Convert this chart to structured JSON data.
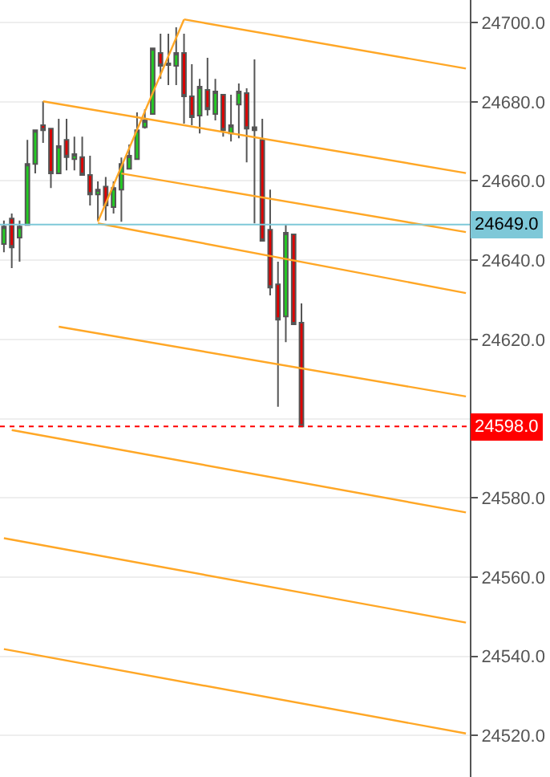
{
  "chart_data": {
    "type": "candlestick",
    "categories": [
      null,
      null,
      null,
      null,
      null,
      null,
      null,
      null,
      null,
      null,
      null,
      null,
      null,
      null,
      null,
      null,
      null,
      null,
      null,
      null,
      null,
      null,
      null,
      null,
      null,
      null,
      null,
      null,
      null,
      null,
      null,
      null,
      null,
      null,
      null,
      null,
      null,
      null,
      null,
      null,
      null,
      null,
      null,
      null,
      null,
      null,
      null,
      null,
      null,
      null,
      null,
      null,
      null,
      null,
      null,
      null,
      null,
      null,
      null,
      null
    ],
    "ohlc": [
      [
        24644.1,
        24650,
        24642,
        24648.5
      ],
      [
        24650.5,
        24651.8,
        24638,
        24643.2
      ],
      [
        24645.7,
        24650,
        24639.6,
        24648.5
      ],
      [
        24648.9,
        24670.4,
        24648.9,
        24664.3
      ],
      [
        24664.3,
        24672.8,
        24661.9,
        24672.8
      ],
      [
        24674.1,
        24680.1,
        24669.6,
        24672.8
      ],
      [
        24673.2,
        24673.2,
        24658.2,
        24661.9
      ],
      [
        24661.9,
        24675.7,
        24661.9,
        24668.8
      ],
      [
        24670.4,
        24675.7,
        24662.7,
        24666
      ],
      [
        24665.5,
        24671.2,
        24662.7,
        24666.8
      ],
      [
        24666,
        24671.2,
        24661.5,
        24661.5
      ],
      [
        24661.5,
        24666.4,
        24653.8,
        24656.6
      ],
      [
        24656.6,
        24659.9,
        24650,
        24657.8
      ],
      [
        24658.6,
        24661,
        24650,
        24653.8
      ],
      [
        24653.4,
        24659.9,
        24651.8,
        24658.2
      ],
      [
        24657.8,
        24665.9,
        24649.7,
        24664.3
      ],
      [
        24663.1,
        24669.2,
        24663.1,
        24666.4
      ],
      [
        24665.5,
        24677.3,
        24665.5,
        24672.8
      ],
      [
        24673.6,
        24678.1,
        24673.2,
        24675.3
      ],
      [
        24676.9,
        24693.5,
        24676.9,
        24693.5
      ],
      [
        24692.3,
        24697.2,
        24685.8,
        24689.1
      ],
      [
        24689.3,
        24697.2,
        24684.2,
        24689.7
      ],
      [
        24689.1,
        24698.8,
        24684.2,
        24692.3
      ],
      [
        24692.3,
        24697.2,
        24674.5,
        24681.4
      ],
      [
        24681.4,
        24689.5,
        24674.1,
        24676.1
      ],
      [
        24676.5,
        24685.8,
        24672,
        24683.8
      ],
      [
        24683,
        24691.1,
        24676.5,
        24678.1
      ],
      [
        24676.9,
        24685.8,
        24675.3,
        24682.6
      ],
      [
        24681.8,
        24681.8,
        24671.2,
        24672.8
      ],
      [
        24672,
        24681.8,
        24670,
        24674.1
      ],
      [
        24679.3,
        24684.6,
        24670.8,
        24682.6
      ],
      [
        24682.2,
        24683.4,
        24664.7,
        24673.2
      ],
      [
        24673.6,
        24690.7,
        24649.3,
        24672.8
      ],
      [
        24670.4,
        24675.7,
        24644.9,
        24644.9
      ],
      [
        24647.7,
        24657.8,
        24631.1,
        24633.1
      ],
      [
        24633.9,
        24639.6,
        24603,
        24625
      ],
      [
        24625.8,
        24648.9,
        24619.3,
        24646.9
      ],
      [
        24646.5,
        24646.5,
        24623.8,
        24623.8
      ],
      [
        24624.2,
        24629.1,
        24598,
        24598
      ],
      null,
      null,
      null,
      null,
      null,
      null,
      null,
      null,
      null,
      null,
      null,
      null,
      null,
      null,
      null,
      null,
      null,
      null,
      null,
      null,
      null
    ],
    "series": [
      {
        "type": "line",
        "color": "#ffa726",
        "values": [
          null,
          null,
          null,
          null,
          null,
          null,
          null,
          null,
          null,
          null,
          null,
          null,
          24649.7,
          null,
          null,
          null,
          null,
          null,
          null,
          null,
          null,
          null,
          null,
          24700.8,
          null,
          null,
          null,
          null,
          null,
          null,
          null,
          null,
          null,
          null,
          null,
          null,
          null,
          null,
          null,
          null,
          null,
          null,
          null,
          null,
          null,
          null,
          null,
          null,
          null,
          null,
          null,
          null,
          null,
          null,
          null,
          null,
          null,
          null,
          null,
          null
        ]
      },
      {
        "type": "line",
        "color": "#ffa726",
        "values": [
          null,
          null,
          null,
          null,
          null,
          null,
          null,
          null,
          null,
          null,
          null,
          null,
          null,
          null,
          null,
          null,
          null,
          null,
          null,
          null,
          null,
          null,
          null,
          24700.8,
          null,
          null,
          null,
          null,
          null,
          null,
          null,
          null,
          null,
          null,
          null,
          null,
          null,
          null,
          null,
          null,
          null,
          null,
          null,
          null,
          null,
          null,
          null,
          null,
          null,
          null,
          null,
          null,
          null,
          null,
          null,
          null,
          null,
          null,
          null,
          24688.4
        ]
      },
      {
        "type": "line",
        "color": "#ffa726",
        "values": [
          null,
          null,
          null,
          null,
          null,
          24680.1,
          null,
          null,
          null,
          null,
          null,
          null,
          null,
          null,
          null,
          null,
          null,
          null,
          null,
          null,
          null,
          null,
          null,
          null,
          null,
          null,
          null,
          null,
          null,
          null,
          null,
          null,
          null,
          null,
          null,
          null,
          null,
          null,
          null,
          null,
          null,
          null,
          null,
          null,
          null,
          null,
          null,
          null,
          null,
          null,
          null,
          null,
          null,
          null,
          null,
          null,
          null,
          null,
          null,
          24662.0
        ]
      },
      {
        "type": "line",
        "color": "#ffa726",
        "values": [
          null,
          null,
          null,
          null,
          null,
          null,
          null,
          null,
          null,
          null,
          null,
          null,
          null,
          null,
          null,
          24661.9,
          null,
          null,
          null,
          null,
          null,
          null,
          null,
          null,
          null,
          null,
          null,
          null,
          null,
          null,
          null,
          null,
          null,
          null,
          null,
          null,
          null,
          null,
          null,
          null,
          null,
          null,
          null,
          null,
          null,
          null,
          null,
          null,
          null,
          null,
          null,
          null,
          null,
          null,
          null,
          null,
          null,
          null,
          null,
          24647.1
        ]
      },
      {
        "type": "line",
        "color": "#ffa726",
        "values": [
          null,
          null,
          null,
          null,
          null,
          null,
          null,
          null,
          null,
          null,
          null,
          null,
          24649.3,
          null,
          null,
          null,
          null,
          null,
          null,
          null,
          null,
          null,
          null,
          null,
          null,
          null,
          null,
          null,
          null,
          null,
          null,
          null,
          null,
          null,
          null,
          null,
          null,
          null,
          null,
          null,
          null,
          null,
          null,
          null,
          null,
          null,
          null,
          null,
          null,
          null,
          null,
          null,
          null,
          null,
          null,
          null,
          null,
          null,
          null,
          24631.7
        ]
      },
      {
        "type": "line",
        "color": "#ffa726",
        "values": [
          null,
          null,
          null,
          null,
          null,
          null,
          null,
          24623.2,
          null,
          null,
          null,
          null,
          null,
          null,
          null,
          null,
          null,
          null,
          null,
          null,
          null,
          null,
          null,
          null,
          null,
          null,
          null,
          null,
          null,
          null,
          null,
          null,
          null,
          null,
          null,
          null,
          null,
          null,
          null,
          null,
          null,
          null,
          null,
          null,
          null,
          null,
          null,
          null,
          null,
          null,
          null,
          null,
          null,
          null,
          null,
          null,
          null,
          null,
          null,
          24605.6
        ]
      },
      {
        "type": "line",
        "color": "#ffa726",
        "values": [
          null,
          24597.1,
          null,
          null,
          null,
          null,
          null,
          null,
          null,
          null,
          null,
          null,
          null,
          null,
          null,
          null,
          null,
          null,
          null,
          null,
          null,
          null,
          null,
          null,
          null,
          null,
          null,
          null,
          null,
          null,
          null,
          null,
          null,
          null,
          null,
          null,
          null,
          null,
          null,
          null,
          null,
          null,
          null,
          null,
          null,
          null,
          null,
          null,
          null,
          null,
          null,
          null,
          null,
          null,
          null,
          null,
          null,
          null,
          null,
          24576.3
        ]
      },
      {
        "type": "line",
        "color": "#ffa726",
        "values": [
          24569.8,
          null,
          null,
          null,
          null,
          null,
          null,
          null,
          null,
          null,
          null,
          null,
          null,
          null,
          null,
          null,
          null,
          null,
          null,
          null,
          null,
          null,
          null,
          null,
          null,
          null,
          null,
          null,
          null,
          null,
          null,
          null,
          null,
          null,
          null,
          null,
          null,
          null,
          null,
          null,
          null,
          null,
          null,
          null,
          null,
          null,
          null,
          null,
          null,
          null,
          null,
          null,
          null,
          null,
          null,
          null,
          null,
          null,
          null,
          24548.5
        ]
      },
      {
        "type": "line",
        "color": "#ffa726",
        "values": [
          24541.8,
          null,
          null,
          null,
          null,
          null,
          null,
          null,
          null,
          null,
          null,
          null,
          null,
          null,
          null,
          null,
          null,
          null,
          null,
          null,
          null,
          null,
          null,
          null,
          null,
          null,
          null,
          null,
          null,
          null,
          null,
          null,
          null,
          null,
          null,
          null,
          null,
          null,
          null,
          null,
          null,
          null,
          null,
          null,
          null,
          null,
          null,
          null,
          null,
          null,
          null,
          null,
          null,
          null,
          null,
          null,
          null,
          null,
          null,
          24520.5
        ]
      }
    ],
    "ref_lines": [
      {
        "axis": "y",
        "value": 24649,
        "label": "24649.0",
        "color": "#7ec8d8",
        "line_style": "solid"
      },
      {
        "axis": "y",
        "value": 24598,
        "label": "24598.0",
        "color": "#ff0000",
        "line_style": "dotted"
      }
    ],
    "ylim": [
      24509.5,
      24705.7
    ],
    "yticks": [
      {
        "value": 24520,
        "label": "24520.0"
      },
      {
        "value": 24540,
        "label": "24540.0"
      },
      {
        "value": 24560,
        "label": "24560.0"
      },
      {
        "value": 24580,
        "label": "24580.0"
      },
      {
        "value": 24600,
        "label": null
      },
      {
        "value": 24620,
        "label": "24620.0"
      },
      {
        "value": 24640,
        "label": "24640.0"
      },
      {
        "value": 24660,
        "label": "24660.0"
      },
      {
        "value": 24680,
        "label": "24680.0"
      },
      {
        "value": 24700,
        "label": "24700.0"
      }
    ],
    "grid": "y",
    "tick_labels": "y"
  }
}
